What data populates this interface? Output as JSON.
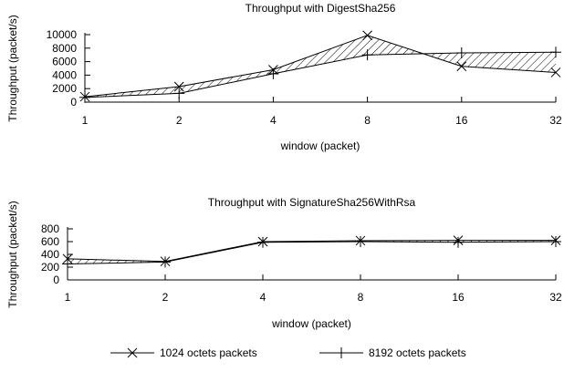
{
  "chart_data": [
    {
      "type": "line",
      "title": "Throughput with DigestSha256",
      "xlabel": "window (packet)",
      "ylabel": "Throughput (packet/s)",
      "x": [
        "1",
        "2",
        "4",
        "8",
        "16",
        "32"
      ],
      "y_ticks": [
        "0",
        "2000",
        "4000",
        "6000",
        "8000",
        "10000"
      ],
      "ylim": [
        0,
        10000
      ],
      "x_scale": "log2",
      "grid": false,
      "fill_between": "hatched",
      "series": [
        {
          "name": "1024 octets packets",
          "marker": "x",
          "values": [
            800,
            2300,
            4800,
            9900,
            5300,
            4400
          ]
        },
        {
          "name": "8192 octets packets",
          "marker": "+",
          "values": [
            700,
            1300,
            4200,
            7000,
            7300,
            7400
          ]
        }
      ]
    },
    {
      "type": "line",
      "title": "Throughput with SignatureSha256WithRsa",
      "xlabel": "window (packet)",
      "ylabel": "Throughput (packet/s)",
      "x": [
        "1",
        "2",
        "4",
        "8",
        "16",
        "32"
      ],
      "y_ticks": [
        "0",
        "200",
        "400",
        "600",
        "800"
      ],
      "ylim": [
        0,
        800
      ],
      "x_scale": "log2",
      "grid": false,
      "fill_between": "hatched",
      "series": [
        {
          "name": "1024 octets packets",
          "marker": "x",
          "values": [
            330,
            290,
            600,
            615,
            620,
            620
          ]
        },
        {
          "name": "8192 octets packets",
          "marker": "+",
          "values": [
            250,
            280,
            590,
            600,
            590,
            600
          ]
        }
      ]
    }
  ],
  "legend": {
    "placement": "bottom",
    "items": [
      {
        "label": "1024 octets packets",
        "marker": "x"
      },
      {
        "label": "8192 octets packets",
        "marker": "+"
      }
    ]
  }
}
